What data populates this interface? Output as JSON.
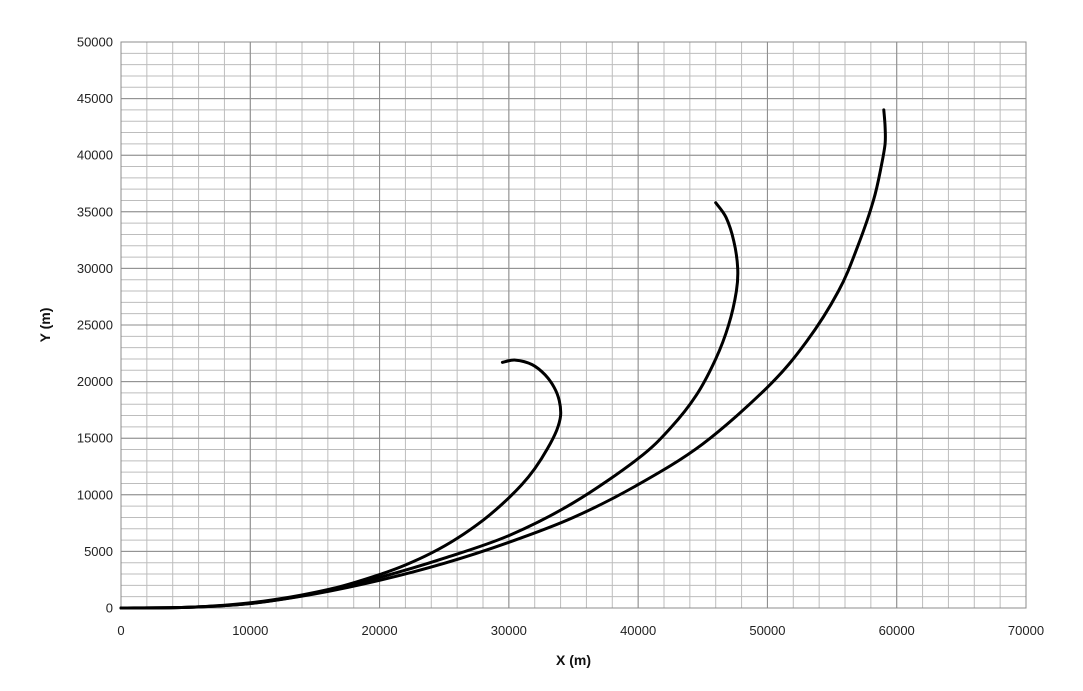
{
  "chart_data": {
    "type": "line",
    "title": "",
    "xlabel": "X (m)",
    "ylabel": "Y (m)",
    "xlim": [
      0,
      70000
    ],
    "ylim": [
      0,
      50000
    ],
    "xticks": [
      0,
      10000,
      20000,
      30000,
      40000,
      50000,
      60000,
      70000
    ],
    "yticks": [
      0,
      5000,
      10000,
      15000,
      20000,
      25000,
      30000,
      35000,
      40000,
      45000,
      50000
    ],
    "xtick_labels": [
      "0",
      "10000",
      "20000",
      "30000",
      "40000",
      "50000",
      "60000",
      "70000"
    ],
    "ytick_labels": [
      "0",
      "5000",
      "10000",
      "15000",
      "20000",
      "25000",
      "30000",
      "35000",
      "40000",
      "45000",
      "50000"
    ],
    "grid": "major and minor",
    "minor_x_step": 2000,
    "minor_y_step": 1000,
    "legend": "none",
    "line_color": "#000000",
    "grid_major_color": "#8c8c8c",
    "grid_minor_color": "#bdbdbd",
    "series": [
      {
        "x": [
          0,
          5000,
          8000,
          11000,
          14000,
          17000,
          20000,
          22000,
          24000,
          26000,
          28000,
          29500,
          31000,
          32000,
          33000,
          33700,
          34000,
          33900,
          33500,
          32800,
          31800,
          30500,
          29500
        ],
        "y": [
          0,
          50,
          250,
          600,
          1150,
          1900,
          2950,
          3800,
          4850,
          6150,
          7750,
          9200,
          10900,
          12300,
          14100,
          15700,
          17000,
          18300,
          19500,
          20600,
          21500,
          21900,
          21700
        ]
      },
      {
        "x": [
          0,
          5000,
          10000,
          15000,
          20000,
          25000,
          30000,
          35000,
          40000,
          42500,
          44500,
          46000,
          47000,
          47600,
          47700,
          47400,
          46800,
          46000
        ],
        "y": [
          0,
          50,
          400,
          1300,
          2700,
          4400,
          6400,
          9300,
          13200,
          15900,
          18800,
          22000,
          25000,
          28000,
          30000,
          32400,
          34500,
          35800
        ]
      },
      {
        "x": [
          0,
          5000,
          10000,
          15000,
          20000,
          25000,
          30000,
          35000,
          40000,
          45000,
          50000,
          53000,
          55500,
          57000,
          58200,
          58800,
          59100,
          59100,
          59000
        ],
        "y": [
          0,
          50,
          400,
          1250,
          2450,
          3950,
          5800,
          8000,
          10900,
          14500,
          19500,
          23500,
          28000,
          32000,
          36000,
          39000,
          41000,
          42500,
          44000
        ]
      }
    ]
  }
}
